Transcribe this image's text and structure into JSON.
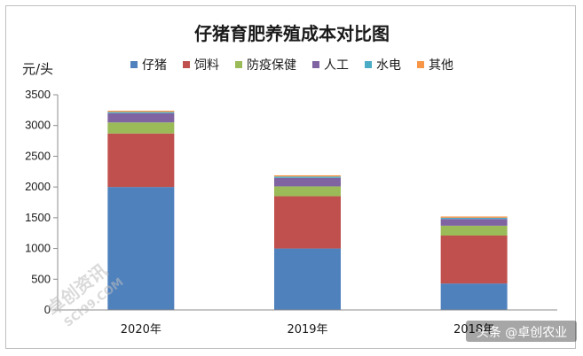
{
  "chart_data": {
    "type": "bar",
    "stacked": true,
    "title": "仔猪育肥养殖成本对比图",
    "ylabel": "元/头",
    "xlabel": "",
    "ylim": [
      0,
      3500
    ],
    "yticks": [
      0,
      500,
      1000,
      1500,
      2000,
      2500,
      3000,
      3500
    ],
    "grid": false,
    "legend": "top",
    "categories": [
      "2020年",
      "2019年",
      "2018年"
    ],
    "series": [
      {
        "name": "仔猪",
        "color": "#4f81bd",
        "values": [
          2000,
          1000,
          430
        ]
      },
      {
        "name": "饲料",
        "color": "#c0504d",
        "values": [
          870,
          850,
          780
        ]
      },
      {
        "name": "防疫保健",
        "color": "#9bbb59",
        "values": [
          180,
          160,
          160
        ]
      },
      {
        "name": "人工",
        "color": "#8064a2",
        "values": [
          150,
          140,
          110
        ]
      },
      {
        "name": "水电",
        "color": "#4bacc6",
        "values": [
          20,
          20,
          20
        ]
      },
      {
        "name": "其他",
        "color": "#f79646",
        "values": [
          20,
          20,
          20
        ]
      }
    ]
  },
  "watermark": {
    "name": "卓创资讯",
    "url": "SCI99.COM"
  },
  "credit": "头条 @卓创农业"
}
